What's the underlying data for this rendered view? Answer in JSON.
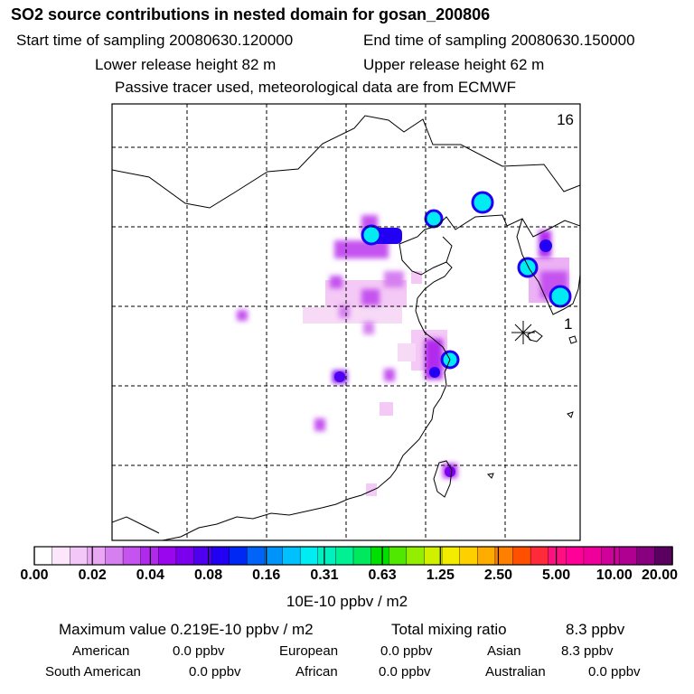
{
  "header": {
    "title": "SO2 source contributions in nested domain for gosan_200806",
    "start_label": "Start time of sampling 20080630.120000",
    "end_label": "End time of sampling 20080630.150000",
    "lower_label": "Lower release height   82 m",
    "upper_label": "Upper release height   62 m",
    "tracer_line": "Passive tracer used, meteorological data are from ECMWF"
  },
  "map": {
    "panel_number": "16",
    "point_label": "1",
    "receptor_marker": "asterisk-icon"
  },
  "colorbar": {
    "colors": [
      "#ffffff",
      "#fbe6fb",
      "#f3c8f8",
      "#eaa8f4",
      "#d67ff0",
      "#c553ef",
      "#b229ee",
      "#9a06ee",
      "#7a00ee",
      "#5000f0",
      "#2200f3",
      "#0028f5",
      "#0064f8",
      "#0094fb",
      "#00c0fd",
      "#00ecf3",
      "#00f0c0",
      "#00f093",
      "#00e85e",
      "#00e000",
      "#50e800",
      "#94ee00",
      "#d0f000",
      "#f4ec00",
      "#ffd000",
      "#ffac00",
      "#ff8000",
      "#ff5000",
      "#ff2a3a",
      "#ff1080",
      "#ff0099",
      "#f0009a",
      "#d0009a",
      "#b00092",
      "#880080",
      "#5a0060"
    ],
    "ticks": [
      "0.00",
      "0.02",
      "0.04",
      "0.08",
      "0.16",
      "0.31",
      "0.63",
      "1.25",
      "2.50",
      "5.00",
      "10.00",
      "20.00"
    ],
    "units": "10E-10 ppbv / m2"
  },
  "summary": {
    "max_value": "Maximum value  0.219E-10 ppbv / m2",
    "total_label": "Total mixing ratio",
    "total_value": "8.3 ppbv"
  },
  "regions": [
    {
      "name": "American",
      "value": "0.0 ppbv"
    },
    {
      "name": "European",
      "value": "0.0 ppbv"
    },
    {
      "name": "Asian",
      "value": "8.3 ppbv"
    },
    {
      "name": "South American",
      "value": "0.0 ppbv"
    },
    {
      "name": "African",
      "value": "0.0 ppbv"
    },
    {
      "name": "Australian",
      "value": "0.0 ppbv"
    }
  ]
}
